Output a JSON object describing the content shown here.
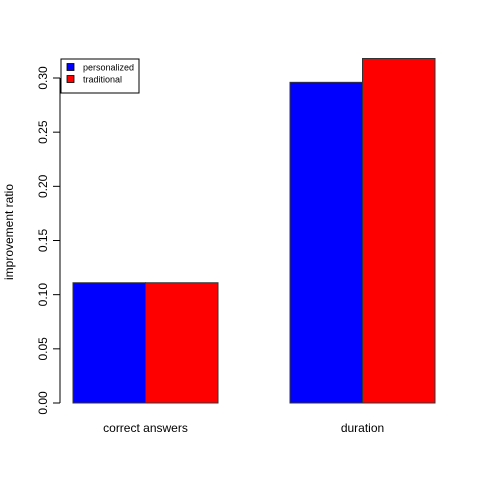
{
  "chart_data": {
    "type": "bar",
    "categories": [
      "correct answers",
      "duration"
    ],
    "series": [
      {
        "name": "personalized",
        "color": "#0000ff",
        "values": [
          0.111,
          0.296
        ]
      },
      {
        "name": "traditional",
        "color": "#ff0000",
        "values": [
          0.111,
          0.318
        ]
      }
    ],
    "title": "",
    "xlabel": "",
    "ylabel": "improvement ratio",
    "ylim": [
      0,
      0.32
    ],
    "yticks": [
      0.0,
      0.05,
      0.1,
      0.15,
      0.2,
      0.25,
      0.3
    ],
    "ytick_labels": [
      "0.00",
      "0.05",
      "0.10",
      "0.15",
      "0.20",
      "0.25",
      "0.30"
    ],
    "grid": false,
    "legend_position": "top-left"
  }
}
